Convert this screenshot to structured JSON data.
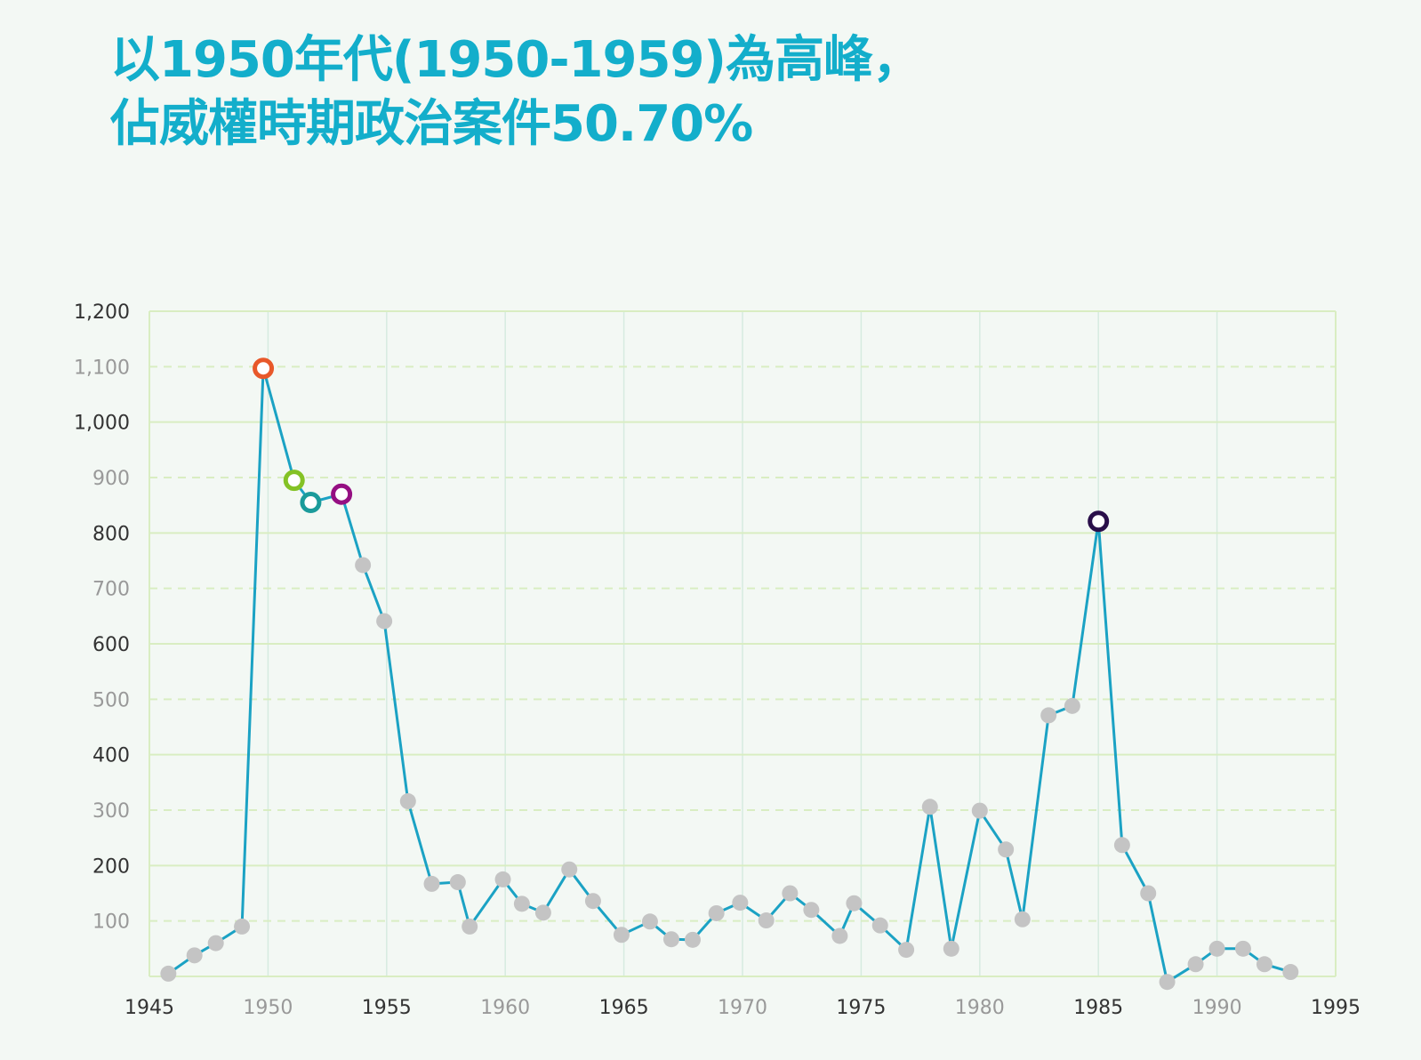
{
  "title": {
    "line1": "以1950年代(1950-1959)為高峰，",
    "line2": "佔威權時期政治案件50.70%"
  },
  "colors": {
    "title": "#13aecb",
    "line": "#1ba2c4",
    "marker": "#c4c4c4",
    "grid": "#d9edc2",
    "vgrid": "#d6ebe0",
    "tick_dark": "#333333",
    "tick_light": "#999999",
    "background": "#f3f8f4"
  },
  "chart_data": {
    "type": "line",
    "title": "以1950年代(1950-1959)為高峰，佔威權時期政治案件50.70%",
    "xlabel": "",
    "ylabel": "",
    "xlim": [
      1945,
      1995
    ],
    "ylim": [
      0,
      1200
    ],
    "grid": true,
    "x_ticks": [
      {
        "value": 1945,
        "label": "1945",
        "tone": "dark"
      },
      {
        "value": 1950,
        "label": "1950",
        "tone": "light"
      },
      {
        "value": 1955,
        "label": "1955",
        "tone": "dark"
      },
      {
        "value": 1960,
        "label": "1960",
        "tone": "light"
      },
      {
        "value": 1965,
        "label": "1965",
        "tone": "dark"
      },
      {
        "value": 1970,
        "label": "1970",
        "tone": "light"
      },
      {
        "value": 1975,
        "label": "1975",
        "tone": "dark"
      },
      {
        "value": 1980,
        "label": "1980",
        "tone": "light"
      },
      {
        "value": 1985,
        "label": "1985",
        "tone": "dark"
      },
      {
        "value": 1990,
        "label": "1990",
        "tone": "light"
      },
      {
        "value": 1995,
        "label": "1995",
        "tone": "dark"
      }
    ],
    "y_ticks": [
      {
        "value": 100,
        "label": "100",
        "tone": "light",
        "dashed": true
      },
      {
        "value": 200,
        "label": "200",
        "tone": "dark",
        "dashed": false
      },
      {
        "value": 300,
        "label": "300",
        "tone": "light",
        "dashed": true
      },
      {
        "value": 400,
        "label": "400",
        "tone": "dark",
        "dashed": false
      },
      {
        "value": 500,
        "label": "500",
        "tone": "light",
        "dashed": true
      },
      {
        "value": 600,
        "label": "600",
        "tone": "dark",
        "dashed": false
      },
      {
        "value": 700,
        "label": "700",
        "tone": "light",
        "dashed": true
      },
      {
        "value": 800,
        "label": "800",
        "tone": "dark",
        "dashed": false
      },
      {
        "value": 900,
        "label": "900",
        "tone": "light",
        "dashed": true
      },
      {
        "value": 1000,
        "label": "1,000",
        "tone": "dark",
        "dashed": false
      },
      {
        "value": 1100,
        "label": "1,100",
        "tone": "light",
        "dashed": true
      },
      {
        "value": 1200,
        "label": "1,200",
        "tone": "dark",
        "dashed": false
      }
    ],
    "series": [
      {
        "points": [
          {
            "x": 1945.8,
            "y": 5
          },
          {
            "x": 1946.9,
            "y": 38
          },
          {
            "x": 1947.8,
            "y": 60
          },
          {
            "x": 1948.9,
            "y": 90
          },
          {
            "x": 1949.8,
            "y": 1097,
            "highlight": "#e8582a"
          },
          {
            "x": 1951.1,
            "y": 895,
            "highlight": "#84c225"
          },
          {
            "x": 1951.8,
            "y": 855,
            "highlight": "#1b9b9b"
          },
          {
            "x": 1953.1,
            "y": 870,
            "highlight": "#950f82"
          },
          {
            "x": 1954.0,
            "y": 742
          },
          {
            "x": 1954.9,
            "y": 641
          },
          {
            "x": 1955.9,
            "y": 316
          },
          {
            "x": 1956.9,
            "y": 167
          },
          {
            "x": 1958.0,
            "y": 170
          },
          {
            "x": 1958.5,
            "y": 90
          },
          {
            "x": 1959.9,
            "y": 175
          },
          {
            "x": 1960.7,
            "y": 131
          },
          {
            "x": 1961.6,
            "y": 115
          },
          {
            "x": 1962.7,
            "y": 193
          },
          {
            "x": 1963.7,
            "y": 136
          },
          {
            "x": 1964.9,
            "y": 75
          },
          {
            "x": 1966.1,
            "y": 99
          },
          {
            "x": 1967.0,
            "y": 67
          },
          {
            "x": 1967.9,
            "y": 66
          },
          {
            "x": 1968.9,
            "y": 114
          },
          {
            "x": 1969.9,
            "y": 133
          },
          {
            "x": 1971.0,
            "y": 101
          },
          {
            "x": 1972.0,
            "y": 150
          },
          {
            "x": 1972.9,
            "y": 120
          },
          {
            "x": 1974.1,
            "y": 73
          },
          {
            "x": 1974.7,
            "y": 132
          },
          {
            "x": 1975.8,
            "y": 92
          },
          {
            "x": 1976.9,
            "y": 48
          },
          {
            "x": 1977.9,
            "y": 306
          },
          {
            "x": 1978.8,
            "y": 50
          },
          {
            "x": 1980.0,
            "y": 299
          },
          {
            "x": 1981.1,
            "y": 229
          },
          {
            "x": 1981.8,
            "y": 103
          },
          {
            "x": 1982.9,
            "y": 471
          },
          {
            "x": 1983.9,
            "y": 488
          },
          {
            "x": 1985.0,
            "y": 821,
            "highlight": "#2a0f4a"
          },
          {
            "x": 1986.0,
            "y": 237
          },
          {
            "x": 1987.1,
            "y": 150
          },
          {
            "x": 1987.9,
            "y": -10
          },
          {
            "x": 1989.1,
            "y": 22
          },
          {
            "x": 1990.0,
            "y": 50
          },
          {
            "x": 1991.1,
            "y": 50
          },
          {
            "x": 1992.0,
            "y": 22
          },
          {
            "x": 1993.1,
            "y": 8
          }
        ]
      }
    ]
  }
}
